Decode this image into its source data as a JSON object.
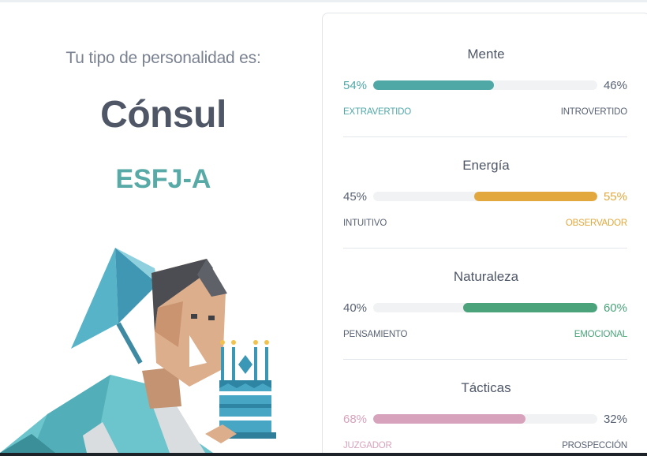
{
  "result": {
    "intro": "Tu tipo de personalidad es:",
    "type_name": "Cónsul",
    "type_code": "ESFJ-A"
  },
  "colors": {
    "teal": "#4fa8a6",
    "gold": "#e2a83d",
    "green": "#4aa37a",
    "pink": "#d7a2bb",
    "muted_text": "#596273"
  },
  "traits": [
    {
      "title": "Mente",
      "left_pct": "54%",
      "right_pct": "46%",
      "left_label": "EXTRAVERTIDO",
      "right_label": "INTROVERTIDO",
      "dominant": "left",
      "value": 54,
      "color": "#4fa8a6"
    },
    {
      "title": "Energía",
      "left_pct": "45%",
      "right_pct": "55%",
      "left_label": "INTUITIVO",
      "right_label": "OBSERVADOR",
      "dominant": "right",
      "value": 55,
      "color": "#e2a83d"
    },
    {
      "title": "Naturaleza",
      "left_pct": "40%",
      "right_pct": "60%",
      "left_label": "PENSAMIENTO",
      "right_label": "EMOCIONAL",
      "dominant": "right",
      "value": 60,
      "color": "#4aa37a"
    },
    {
      "title": "Tácticas",
      "left_pct": "68%",
      "right_pct": "32%",
      "left_label": "JUZGADOR",
      "right_label": "PROSPECCIÓN",
      "dominant": "left",
      "value": 68,
      "color": "#d7a2bb"
    }
  ]
}
